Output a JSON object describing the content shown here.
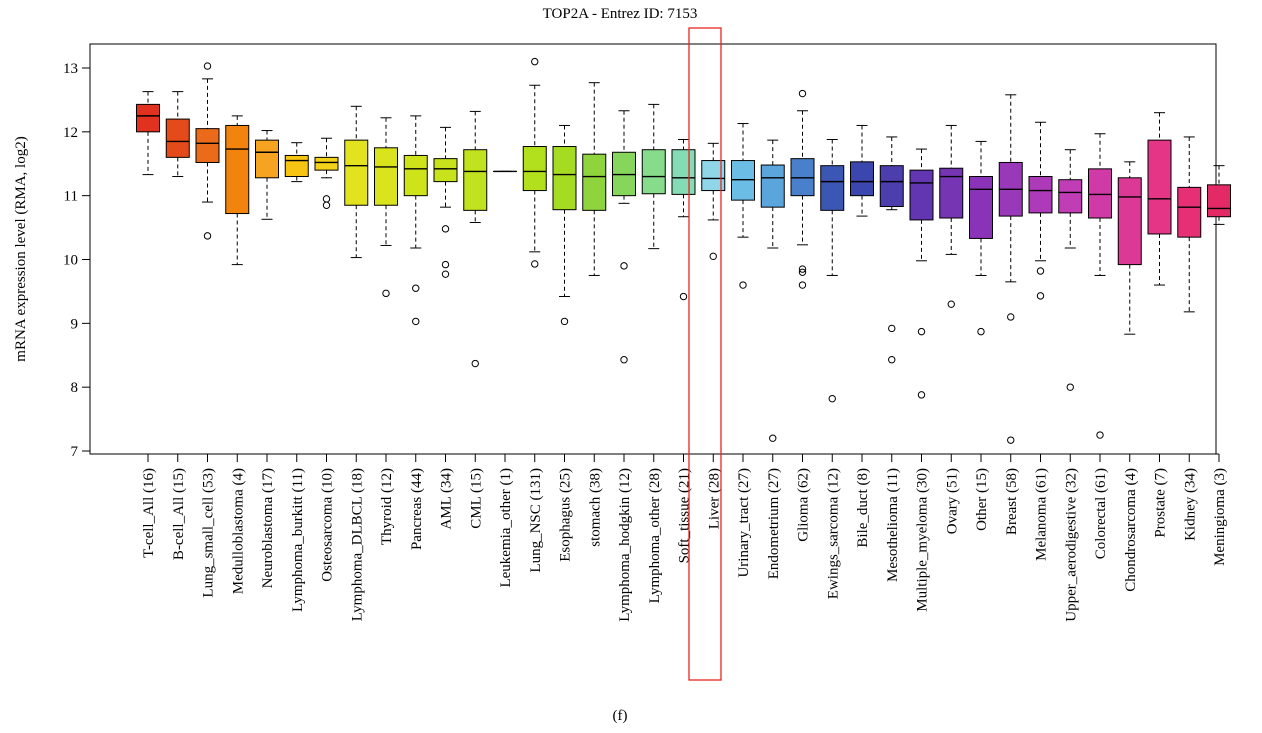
{
  "chart_data": {
    "type": "boxplot",
    "title": "TOP2A - Entrez ID: 7153",
    "ylabel": "mRNA expression level (RMA, log2)",
    "xlabel": "",
    "ylim": [
      6.9,
      13.35
    ],
    "yticks": [
      7,
      8,
      9,
      10,
      11,
      12,
      13
    ],
    "panel_label": "(f)",
    "highlight": "Liver (28)",
    "highlight_color": "#e8251f",
    "grid": false,
    "categories": [
      {
        "label": "T-cell_All (16)",
        "color": "#e0321e",
        "whislo": 11.33,
        "q1": 12.0,
        "med": 12.25,
        "q3": 12.43,
        "whishi": 12.63,
        "outliers": []
      },
      {
        "label": "B-cell_All (15)",
        "color": "#e54b1a",
        "whislo": 11.3,
        "q1": 11.6,
        "med": 11.85,
        "q3": 12.2,
        "whishi": 12.63,
        "outliers": []
      },
      {
        "label": "Lung_small_cell (53)",
        "color": "#ec6b1a",
        "whislo": 10.9,
        "q1": 11.52,
        "med": 11.82,
        "q3": 12.05,
        "whishi": 12.83,
        "outliers": [
          13.03,
          10.37
        ]
      },
      {
        "label": "Medulloblastoma (4)",
        "color": "#f2830c",
        "whislo": 9.92,
        "q1": 10.72,
        "med": 11.73,
        "q3": 12.1,
        "whishi": 12.25,
        "outliers": []
      },
      {
        "label": "Neuroblastoma (17)",
        "color": "#f7a322",
        "whislo": 10.63,
        "q1": 11.28,
        "med": 11.68,
        "q3": 11.87,
        "whishi": 12.02,
        "outliers": []
      },
      {
        "label": "Lymphoma_burkitt (11)",
        "color": "#f8c414",
        "whislo": 11.22,
        "q1": 11.3,
        "med": 11.55,
        "q3": 11.63,
        "whishi": 11.83,
        "outliers": []
      },
      {
        "label": "Osteosarcoma (10)",
        "color": "#f3d21a",
        "whislo": 11.28,
        "q1": 11.4,
        "med": 11.52,
        "q3": 11.6,
        "whishi": 11.9,
        "outliers": [
          10.95,
          10.85
        ]
      },
      {
        "label": "Lymphoma_DLBCL (18)",
        "color": "#e3e21e",
        "whislo": 10.03,
        "q1": 10.85,
        "med": 11.47,
        "q3": 11.87,
        "whishi": 12.4,
        "outliers": []
      },
      {
        "label": "Thyroid (12)",
        "color": "#d9e41c",
        "whislo": 10.22,
        "q1": 10.85,
        "med": 11.45,
        "q3": 11.75,
        "whishi": 12.22,
        "outliers": [
          9.47
        ]
      },
      {
        "label": "Pancreas (44)",
        "color": "#cfe31a",
        "whislo": 10.18,
        "q1": 11.0,
        "med": 11.42,
        "q3": 11.63,
        "whishi": 12.25,
        "outliers": [
          9.55,
          9.03
        ]
      },
      {
        "label": "AML (34)",
        "color": "#c8e31c",
        "whislo": 10.82,
        "q1": 11.22,
        "med": 11.42,
        "q3": 11.58,
        "whishi": 12.07,
        "outliers": [
          10.48,
          9.92,
          9.77
        ]
      },
      {
        "label": "CML (15)",
        "color": "#c1e21e",
        "whislo": 10.58,
        "q1": 10.77,
        "med": 11.38,
        "q3": 11.72,
        "whishi": 12.32,
        "outliers": [
          8.37
        ]
      },
      {
        "label": "Leukemia_other (1)",
        "color": "#b9e21e",
        "whislo": 11.38,
        "q1": 11.38,
        "med": 11.38,
        "q3": 11.38,
        "whishi": 11.38,
        "outliers": []
      },
      {
        "label": "Lung_NSC (131)",
        "color": "#b2e01c",
        "whislo": 10.12,
        "q1": 11.08,
        "med": 11.38,
        "q3": 11.77,
        "whishi": 12.73,
        "outliers": [
          13.1,
          9.93
        ]
      },
      {
        "label": "Esophagus (25)",
        "color": "#a5dc22",
        "whislo": 9.42,
        "q1": 10.78,
        "med": 11.33,
        "q3": 11.77,
        "whishi": 12.1,
        "outliers": [
          9.03
        ]
      },
      {
        "label": "stomach (38)",
        "color": "#8fd43c",
        "whislo": 9.75,
        "q1": 10.77,
        "med": 11.3,
        "q3": 11.65,
        "whishi": 12.77,
        "outliers": []
      },
      {
        "label": "Lymphoma_hodgkin (12)",
        "color": "#85d65a",
        "whislo": 10.88,
        "q1": 11.0,
        "med": 11.33,
        "q3": 11.68,
        "whishi": 12.33,
        "outliers": [
          9.9,
          8.43
        ]
      },
      {
        "label": "Lymphoma_other (28)",
        "color": "#86dc8a",
        "whislo": 10.17,
        "q1": 11.03,
        "med": 11.3,
        "q3": 11.72,
        "whishi": 12.43,
        "outliers": []
      },
      {
        "label": "Soft_tissue (21)",
        "color": "#84dcb6",
        "whislo": 10.67,
        "q1": 11.02,
        "med": 11.28,
        "q3": 11.72,
        "whishi": 11.88,
        "outliers": [
          9.42
        ]
      },
      {
        "label": "Liver (28)",
        "color": "#8fd6e8",
        "whislo": 10.62,
        "q1": 11.08,
        "med": 11.27,
        "q3": 11.55,
        "whishi": 11.82,
        "outliers": [
          10.05
        ]
      },
      {
        "label": "Urinary_tract (27)",
        "color": "#6cbde6",
        "whislo": 10.35,
        "q1": 10.93,
        "med": 11.25,
        "q3": 11.55,
        "whishi": 12.13,
        "outliers": [
          9.6
        ]
      },
      {
        "label": "Endometrium (27)",
        "color": "#5ba5dd",
        "whislo": 10.18,
        "q1": 10.82,
        "med": 11.28,
        "q3": 11.48,
        "whishi": 11.87,
        "outliers": [
          7.2
        ]
      },
      {
        "label": "Glioma (62)",
        "color": "#4a7fcc",
        "whislo": 10.23,
        "q1": 11.0,
        "med": 11.28,
        "q3": 11.58,
        "whishi": 12.33,
        "outliers": [
          12.6,
          9.85,
          9.8,
          9.6
        ]
      },
      {
        "label": "Ewings_sarcoma (12)",
        "color": "#3c56b4",
        "whislo": 9.75,
        "q1": 10.77,
        "med": 11.22,
        "q3": 11.47,
        "whishi": 11.88,
        "outliers": [
          7.82
        ]
      },
      {
        "label": "Bile_duct (8)",
        "color": "#3b47ad",
        "whislo": 10.68,
        "q1": 11.0,
        "med": 11.22,
        "q3": 11.53,
        "whishi": 12.1,
        "outliers": []
      },
      {
        "label": "Mesothelioma (11)",
        "color": "#4d3eae",
        "whislo": 10.78,
        "q1": 10.83,
        "med": 11.22,
        "q3": 11.47,
        "whishi": 11.92,
        "outliers": [
          8.92,
          8.43
        ]
      },
      {
        "label": "Multiple_myeloma (30)",
        "color": "#6136b0",
        "whislo": 9.98,
        "q1": 10.62,
        "med": 11.2,
        "q3": 11.4,
        "whishi": 11.73,
        "outliers": [
          8.87,
          7.88
        ]
      },
      {
        "label": "Ovary (51)",
        "color": "#7636b4",
        "whislo": 10.08,
        "q1": 10.65,
        "med": 11.3,
        "q3": 11.43,
        "whishi": 12.1,
        "outliers": [
          9.3
        ]
      },
      {
        "label": "Other (15)",
        "color": "#8a33b8",
        "whislo": 9.75,
        "q1": 10.33,
        "med": 11.1,
        "q3": 11.3,
        "whishi": 11.85,
        "outliers": [
          8.87
        ]
      },
      {
        "label": "Breast (58)",
        "color": "#9938b8",
        "whislo": 9.65,
        "q1": 10.68,
        "med": 11.1,
        "q3": 11.52,
        "whishi": 12.58,
        "outliers": [
          9.1,
          7.17
        ]
      },
      {
        "label": "Melanoma (61)",
        "color": "#ad3ab8",
        "whislo": 9.98,
        "q1": 10.73,
        "med": 11.08,
        "q3": 11.3,
        "whishi": 12.15,
        "outliers": [
          9.82,
          9.43
        ]
      },
      {
        "label": "Upper_aerodigestive (32)",
        "color": "#c03db5",
        "whislo": 10.18,
        "q1": 10.73,
        "med": 11.05,
        "q3": 11.25,
        "whishi": 11.72,
        "outliers": [
          8.0
        ]
      },
      {
        "label": "Colorectal (61)",
        "color": "#cf3aa6",
        "whislo": 9.75,
        "q1": 10.65,
        "med": 11.02,
        "q3": 11.42,
        "whishi": 11.97,
        "outliers": [
          7.25
        ]
      },
      {
        "label": "Chondrosarcoma (4)",
        "color": "#dc3896",
        "whislo": 8.83,
        "q1": 9.92,
        "med": 10.98,
        "q3": 11.28,
        "whishi": 11.53,
        "outliers": []
      },
      {
        "label": "Prostate (7)",
        "color": "#e43586",
        "whislo": 9.6,
        "q1": 10.4,
        "med": 10.95,
        "q3": 11.87,
        "whishi": 12.3,
        "outliers": []
      },
      {
        "label": "Kidney (34)",
        "color": "#e62f74",
        "whislo": 9.18,
        "q1": 10.35,
        "med": 10.82,
        "q3": 11.13,
        "whishi": 11.92,
        "outliers": []
      },
      {
        "label": "Meningioma (3)",
        "color": "#e42a64",
        "whislo": 10.55,
        "q1": 10.67,
        "med": 10.8,
        "q3": 11.17,
        "whishi": 11.47,
        "outliers": []
      }
    ]
  }
}
